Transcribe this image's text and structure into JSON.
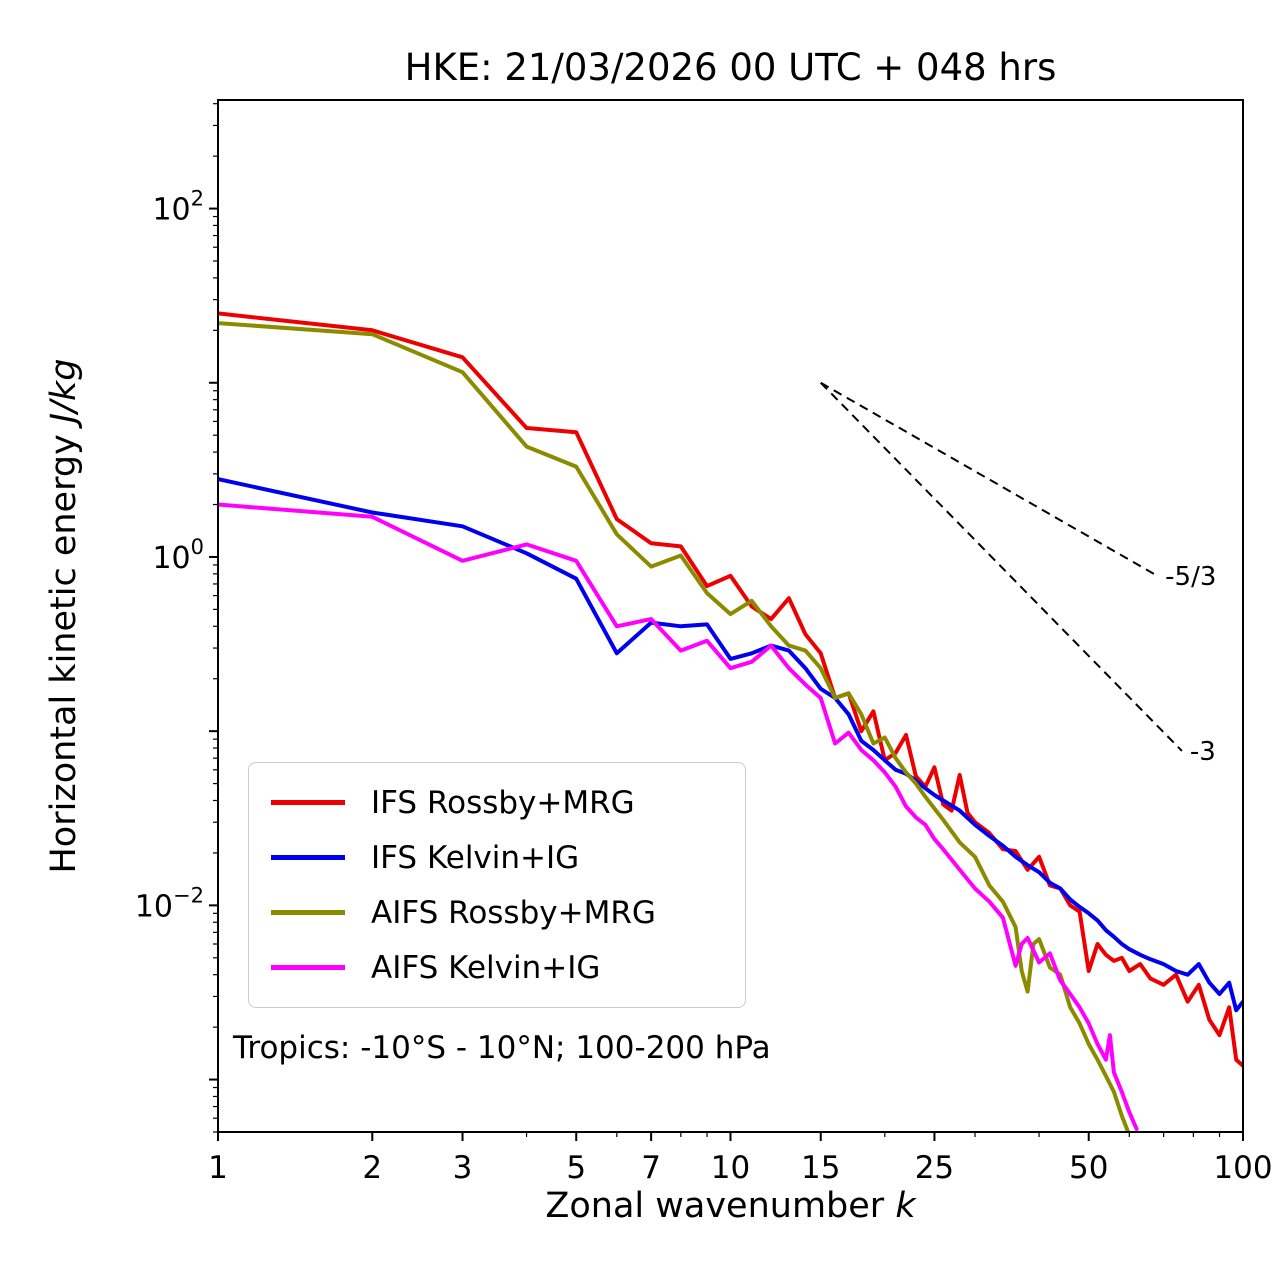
{
  "chart_data": {
    "type": "line",
    "title": "HKE: 21/03/2026 00 UTC + 048 hrs",
    "xlabel": "Zonal wavenumber k",
    "xlabel_text": "Zonal wavenumber ",
    "xlabel_math": "k",
    "ylabel": "Horizontal kinetic energy J/kg",
    "ylabel_text": "Horizontal kinetic energy ",
    "ylabel_math": "J/kg",
    "annotation": "Tropics: -10°S - 10°N; 100-200 hPa",
    "x_scale": "log",
    "y_scale": "log",
    "xlim": [
      1,
      100
    ],
    "ylim": [
      0.0005,
      420
    ],
    "grid": false,
    "legend_position": "lower-left",
    "x_ticks": [
      1,
      2,
      3,
      5,
      7,
      10,
      15,
      25,
      50,
      100
    ],
    "x_minor_ticks": [
      4,
      6,
      8,
      9,
      20,
      30,
      40,
      60,
      70,
      80,
      90
    ],
    "y_tick_exponents": [
      2,
      0,
      -2
    ],
    "y_major_tick_exponents": [
      -3,
      -2,
      -1,
      0,
      1,
      2
    ],
    "ref_lines": [
      {
        "label": "-5/3",
        "x": [
          15,
          68
        ],
        "y": [
          10,
          0.78
        ]
      },
      {
        "label": "-3",
        "x": [
          15,
          76
        ],
        "y": [
          10,
          0.077
        ]
      }
    ],
    "series": [
      {
        "name": "IFS Rossby+MRG",
        "color": "#ee0000",
        "points": [
          [
            1,
            25
          ],
          [
            2,
            20
          ],
          [
            3,
            14
          ],
          [
            4,
            5.5
          ],
          [
            5,
            5.2
          ],
          [
            6,
            1.65
          ],
          [
            7,
            1.2
          ],
          [
            8,
            1.15
          ],
          [
            9,
            0.68
          ],
          [
            10,
            0.78
          ],
          [
            11,
            0.52
          ],
          [
            12,
            0.44
          ],
          [
            13,
            0.58
          ],
          [
            14,
            0.36
          ],
          [
            15,
            0.28
          ],
          [
            16,
            0.155
          ],
          [
            17,
            0.165
          ],
          [
            18,
            0.1
          ],
          [
            19,
            0.13
          ],
          [
            20,
            0.068
          ],
          [
            21,
            0.075
          ],
          [
            22,
            0.095
          ],
          [
            23,
            0.055
          ],
          [
            24,
            0.048
          ],
          [
            25,
            0.062
          ],
          [
            26,
            0.038
          ],
          [
            27,
            0.035
          ],
          [
            28,
            0.056
          ],
          [
            29,
            0.034
          ],
          [
            30,
            0.03
          ],
          [
            32,
            0.026
          ],
          [
            34,
            0.021
          ],
          [
            36,
            0.0205
          ],
          [
            38,
            0.016
          ],
          [
            40,
            0.019
          ],
          [
            42,
            0.013
          ],
          [
            44,
            0.0125
          ],
          [
            46,
            0.01
          ],
          [
            48,
            0.0092
          ],
          [
            50,
            0.0042
          ],
          [
            52,
            0.006
          ],
          [
            54,
            0.0052
          ],
          [
            56,
            0.0048
          ],
          [
            58,
            0.005
          ],
          [
            60,
            0.0042
          ],
          [
            63,
            0.0046
          ],
          [
            66,
            0.0038
          ],
          [
            70,
            0.0035
          ],
          [
            74,
            0.004
          ],
          [
            78,
            0.0028
          ],
          [
            82,
            0.0035
          ],
          [
            86,
            0.0022
          ],
          [
            90,
            0.0018
          ],
          [
            94,
            0.0026
          ],
          [
            97,
            0.0013
          ],
          [
            100,
            0.0012
          ]
        ]
      },
      {
        "name": "IFS Kelvin+IG",
        "color": "#0000f0",
        "points": [
          [
            1,
            2.8
          ],
          [
            2,
            1.8
          ],
          [
            3,
            1.5
          ],
          [
            4,
            1.05
          ],
          [
            5,
            0.75
          ],
          [
            6,
            0.28
          ],
          [
            7,
            0.42
          ],
          [
            8,
            0.4
          ],
          [
            9,
            0.41
          ],
          [
            10,
            0.26
          ],
          [
            11,
            0.28
          ],
          [
            12,
            0.31
          ],
          [
            13,
            0.29
          ],
          [
            14,
            0.23
          ],
          [
            15,
            0.175
          ],
          [
            16,
            0.155
          ],
          [
            17,
            0.125
          ],
          [
            18,
            0.088
          ],
          [
            19,
            0.078
          ],
          [
            20,
            0.068
          ],
          [
            21,
            0.06
          ],
          [
            22,
            0.057
          ],
          [
            23,
            0.052
          ],
          [
            24,
            0.047
          ],
          [
            25,
            0.043
          ],
          [
            26,
            0.04
          ],
          [
            28,
            0.035
          ],
          [
            30,
            0.029
          ],
          [
            32,
            0.025
          ],
          [
            34,
            0.022
          ],
          [
            36,
            0.019
          ],
          [
            38,
            0.017
          ],
          [
            40,
            0.0155
          ],
          [
            42,
            0.0135
          ],
          [
            44,
            0.0125
          ],
          [
            46,
            0.0108
          ],
          [
            48,
            0.0098
          ],
          [
            50,
            0.009
          ],
          [
            52,
            0.0082
          ],
          [
            54,
            0.0072
          ],
          [
            56,
            0.0066
          ],
          [
            58,
            0.006
          ],
          [
            60,
            0.0056
          ],
          [
            63,
            0.0052
          ],
          [
            66,
            0.0049
          ],
          [
            70,
            0.0046
          ],
          [
            74,
            0.0042
          ],
          [
            78,
            0.004
          ],
          [
            82,
            0.0046
          ],
          [
            86,
            0.0036
          ],
          [
            90,
            0.0031
          ],
          [
            94,
            0.0036
          ],
          [
            97,
            0.0025
          ],
          [
            100,
            0.0028
          ]
        ]
      },
      {
        "name": "AIFS Rossby+MRG",
        "color": "#8b8b00",
        "points": [
          [
            1,
            22
          ],
          [
            2,
            19
          ],
          [
            3,
            11.5
          ],
          [
            4,
            4.3
          ],
          [
            5,
            3.3
          ],
          [
            6,
            1.35
          ],
          [
            7,
            0.88
          ],
          [
            8,
            1.02
          ],
          [
            9,
            0.62
          ],
          [
            10,
            0.47
          ],
          [
            11,
            0.56
          ],
          [
            12,
            0.4
          ],
          [
            13,
            0.31
          ],
          [
            14,
            0.29
          ],
          [
            15,
            0.23
          ],
          [
            16,
            0.155
          ],
          [
            17,
            0.165
          ],
          [
            18,
            0.125
          ],
          [
            19,
            0.085
          ],
          [
            20,
            0.092
          ],
          [
            21,
            0.07
          ],
          [
            22,
            0.058
          ],
          [
            23,
            0.05
          ],
          [
            24,
            0.042
          ],
          [
            25,
            0.036
          ],
          [
            26,
            0.031
          ],
          [
            28,
            0.023
          ],
          [
            30,
            0.019
          ],
          [
            32,
            0.013
          ],
          [
            34,
            0.0105
          ],
          [
            36,
            0.0075
          ],
          [
            37,
            0.0042
          ],
          [
            38,
            0.0032
          ],
          [
            39,
            0.006
          ],
          [
            40,
            0.0064
          ],
          [
            42,
            0.0044
          ],
          [
            44,
            0.004
          ],
          [
            46,
            0.0026
          ],
          [
            48,
            0.0021
          ],
          [
            50,
            0.0016
          ],
          [
            52,
            0.0013
          ],
          [
            54,
            0.00105
          ],
          [
            56,
            0.00085
          ],
          [
            58,
            0.00062
          ],
          [
            60,
            0.00048
          ]
        ]
      },
      {
        "name": "AIFS Kelvin+IG",
        "color": "#ff00ff",
        "points": [
          [
            1,
            2.0
          ],
          [
            2,
            1.7
          ],
          [
            3,
            0.95
          ],
          [
            4,
            1.18
          ],
          [
            5,
            0.95
          ],
          [
            6,
            0.4
          ],
          [
            7,
            0.44
          ],
          [
            8,
            0.29
          ],
          [
            9,
            0.33
          ],
          [
            10,
            0.23
          ],
          [
            11,
            0.25
          ],
          [
            12,
            0.31
          ],
          [
            13,
            0.23
          ],
          [
            14,
            0.185
          ],
          [
            15,
            0.155
          ],
          [
            16,
            0.085
          ],
          [
            17,
            0.098
          ],
          [
            18,
            0.078
          ],
          [
            19,
            0.068
          ],
          [
            20,
            0.058
          ],
          [
            21,
            0.048
          ],
          [
            22,
            0.037
          ],
          [
            23,
            0.032
          ],
          [
            24,
            0.029
          ],
          [
            25,
            0.024
          ],
          [
            26,
            0.021
          ],
          [
            28,
            0.016
          ],
          [
            30,
            0.0125
          ],
          [
            32,
            0.0105
          ],
          [
            34,
            0.0085
          ],
          [
            36,
            0.0045
          ],
          [
            37,
            0.006
          ],
          [
            38,
            0.0065
          ],
          [
            40,
            0.0047
          ],
          [
            42,
            0.0053
          ],
          [
            44,
            0.0037
          ],
          [
            46,
            0.0031
          ],
          [
            48,
            0.0026
          ],
          [
            50,
            0.0021
          ],
          [
            52,
            0.0016
          ],
          [
            54,
            0.0013
          ],
          [
            55,
            0.0018
          ],
          [
            56,
            0.0011
          ],
          [
            58,
            0.00085
          ],
          [
            60,
            0.00065
          ],
          [
            62,
            0.00052
          ]
        ]
      }
    ]
  }
}
